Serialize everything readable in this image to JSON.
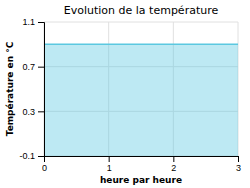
{
  "chart_data": {
    "type": "area",
    "title": "Evolution de la température",
    "xlabel": "heure par heure",
    "ylabel": "Température en °C",
    "x": [
      0,
      3
    ],
    "values": [
      0.9,
      0.9
    ],
    "color": "#5bc8e0",
    "xlim": [
      0,
      3
    ],
    "ylim": [
      -0.1,
      1.1
    ],
    "xticks": [
      0,
      1,
      2,
      3
    ],
    "yticks": [
      -0.1,
      0.3,
      0.7,
      1.1
    ],
    "grid": true
  }
}
